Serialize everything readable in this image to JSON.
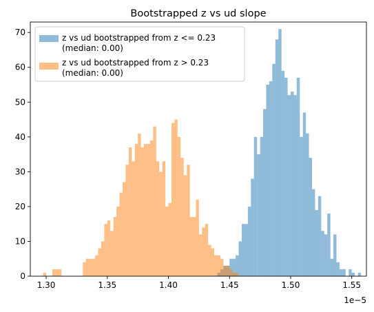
{
  "chart_data": {
    "type": "bar",
    "title": "Bootstrapped z vs ud slope",
    "xlabel": "",
    "ylabel": "",
    "x_offset_label": "1e−5",
    "xlim": [
      1.287,
      1.562
    ],
    "ylim": [
      0,
      73
    ],
    "x_ticks": [
      1.3,
      1.35,
      1.4,
      1.45,
      1.5,
      1.55
    ],
    "x_tick_labels": [
      "1.30",
      "1.35",
      "1.40",
      "1.45",
      "1.50",
      "1.55"
    ],
    "y_ticks": [
      0,
      10,
      20,
      30,
      40,
      50,
      60,
      70
    ],
    "y_tick_labels": [
      "0",
      "10",
      "20",
      "30",
      "40",
      "50",
      "60",
      "70"
    ],
    "grid": false,
    "legend_position": "top-left",
    "bin_width": 0.0025,
    "series": [
      {
        "name": "z vs ud bootstrapped from z <= 0.23",
        "median_label": "(median: 0.00)",
        "color": "#1f77b4",
        "alpha": 0.5,
        "bin_start": 1.44,
        "counts": [
          1,
          2,
          3,
          3,
          5,
          5,
          6,
          10,
          15,
          15,
          20,
          28,
          40,
          35,
          40,
          48,
          55,
          56,
          61,
          68,
          71,
          59,
          57,
          52,
          53,
          52,
          57,
          40,
          47,
          41,
          34,
          25,
          19,
          23,
          13,
          12,
          18,
          5,
          12,
          4,
          2,
          2,
          0,
          2,
          1,
          0,
          1
        ]
      },
      {
        "name": "z vs ud bootstrapped from z > 0.23",
        "median_label": "(median: 0.00)",
        "color": "#ff7f0e",
        "alpha": 0.5,
        "bin_start": 1.2975,
        "counts": [
          1,
          0,
          0,
          2,
          2,
          2,
          0,
          0,
          0,
          0,
          0,
          0,
          0,
          4,
          5,
          5,
          5,
          6,
          8,
          10,
          15,
          16,
          13,
          17,
          20,
          24,
          27,
          32,
          37,
          33,
          38,
          41,
          37,
          38,
          38,
          39,
          43,
          33,
          30,
          33,
          20,
          21,
          44,
          45,
          40,
          34,
          29,
          32,
          17,
          17,
          22,
          12,
          14,
          15,
          9,
          8,
          6,
          6,
          5,
          3,
          3,
          2,
          1,
          1
        ]
      }
    ]
  }
}
